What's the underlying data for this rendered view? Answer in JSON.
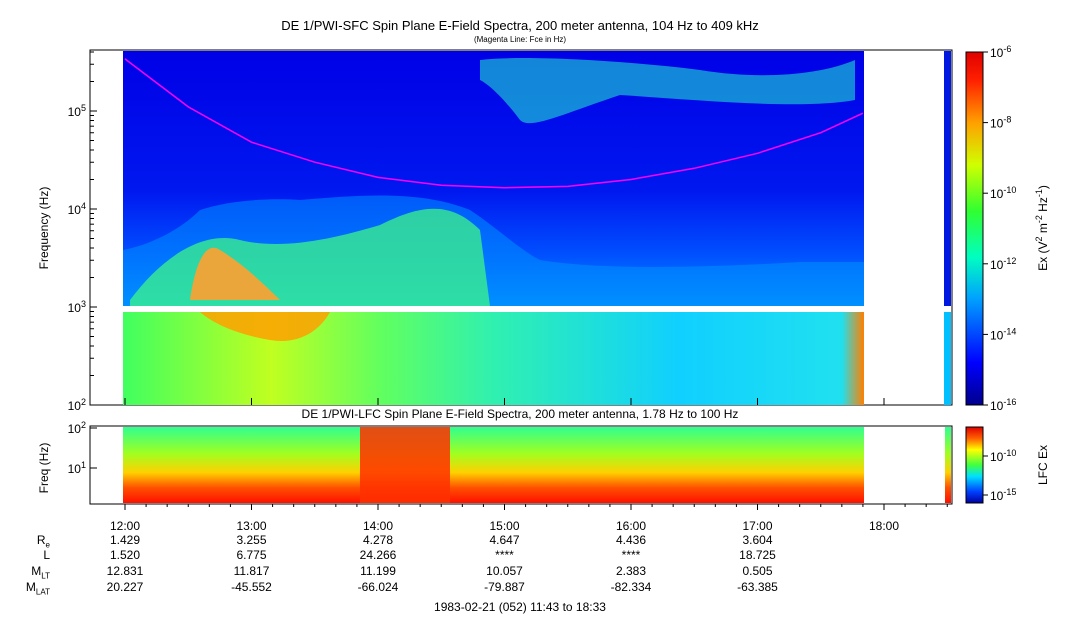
{
  "chart_data": [
    {
      "type": "heatmap",
      "title": "DE 1/PWI-SFC  Spin Plane E-Field Spectra, 200 meter antenna, 104 Hz to 409 kHz",
      "subtitle": "(Magenta Line: Fce in Hz)",
      "ylabel": "Frequency (Hz)",
      "y_scale": "log",
      "ylim": [
        100,
        409000
      ],
      "y_ticks": [
        "10^2",
        "10^3",
        "10^4",
        "10^5"
      ],
      "colorbar": {
        "label": "Ex (V^2 m^-2 Hz^-1)",
        "scale": "log",
        "range": [
          1e-16,
          1e-06
        ],
        "ticks": [
          "10^-6",
          "10^-8",
          "10^-10",
          "10^-12",
          "10^-14",
          "10^-16"
        ]
      },
      "overlay_series": {
        "name": "Fce",
        "color": "#ff00ff",
        "x": [
          "12:00",
          "12:30",
          "13:00",
          "13:30",
          "14:00",
          "14:30",
          "15:00",
          "15:30",
          "16:00",
          "16:30",
          "17:00",
          "17:30",
          "17:50"
        ],
        "values": [
          340000,
          110000,
          48000,
          30000,
          21000,
          17500,
          16500,
          17000,
          20000,
          26000,
          37000,
          60000,
          95000
        ]
      }
    },
    {
      "type": "heatmap",
      "title": "DE 1/PWI-LFC  Spin Plane E-Field Spectra, 200 meter antenna, 1.78 Hz to 100 Hz",
      "ylabel": "Freq (Hz)",
      "y_scale": "log",
      "ylim": [
        1.78,
        100
      ],
      "y_ticks": [
        "10^1",
        "10^2"
      ],
      "colorbar": {
        "label": "LFC Ex",
        "scale": "log",
        "ticks": [
          "10^-10",
          "10^-15"
        ]
      }
    }
  ],
  "x_axis": {
    "ticks": [
      "12:00",
      "13:00",
      "14:00",
      "15:00",
      "16:00",
      "17:00",
      "18:00"
    ]
  },
  "ephemeris": {
    "labels": [
      "R_E",
      "L",
      "M_LT",
      "M_LAT"
    ],
    "rows": [
      [
        "1.429",
        "3.255",
        "4.278",
        "4.647",
        "4.436",
        "3.604"
      ],
      [
        "1.520",
        "6.775",
        "24.266",
        "****",
        "****",
        "18.725"
      ],
      [
        "12.831",
        "11.817",
        "11.199",
        "10.057",
        "2.383",
        "0.505"
      ],
      [
        "20.227",
        "-45.552",
        "-66.024",
        "-79.887",
        "-82.334",
        "-63.385"
      ]
    ]
  },
  "footer": "1983-02-21 (052) 11:43 to 18:33",
  "colors": {
    "fce_line": "#ff00ff",
    "background": "#ffffff"
  }
}
